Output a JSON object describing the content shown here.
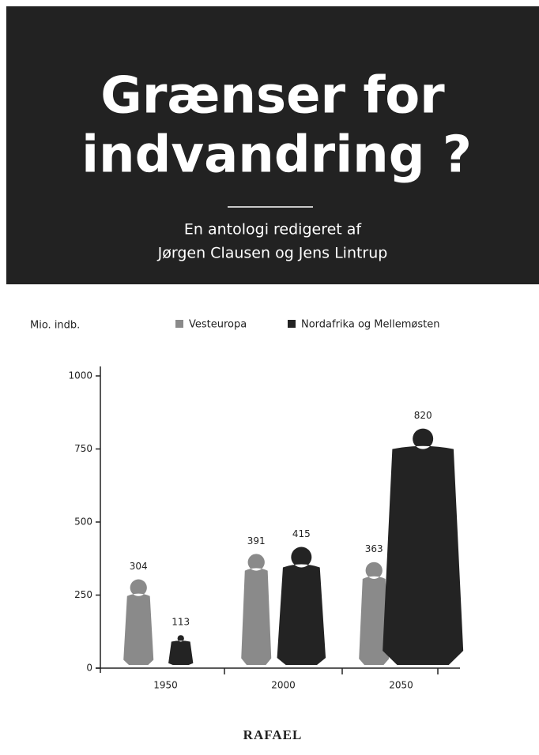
{
  "cover": {
    "title_lines": [
      "Grænser for",
      "indvandring ?"
    ],
    "subtitle_lines": [
      "En antologi redigeret af",
      "Jørgen Clausen og Jens Lintrup"
    ],
    "publisher": "RAFAEL"
  },
  "chart_data": {
    "type": "bar",
    "y_label": "Mio. indb.",
    "categories": [
      "1950",
      "2000",
      "2050"
    ],
    "series": [
      {
        "name": "Vesteuropa",
        "color": "#8a8a8a",
        "values": [
          304,
          391,
          363
        ]
      },
      {
        "name": "Nordafrika og Mellemøsten",
        "color": "#232323",
        "values": [
          113,
          415,
          820
        ]
      }
    ],
    "ylim": [
      0,
      1000
    ],
    "yticks": [
      0,
      250,
      500,
      750,
      1000
    ]
  }
}
